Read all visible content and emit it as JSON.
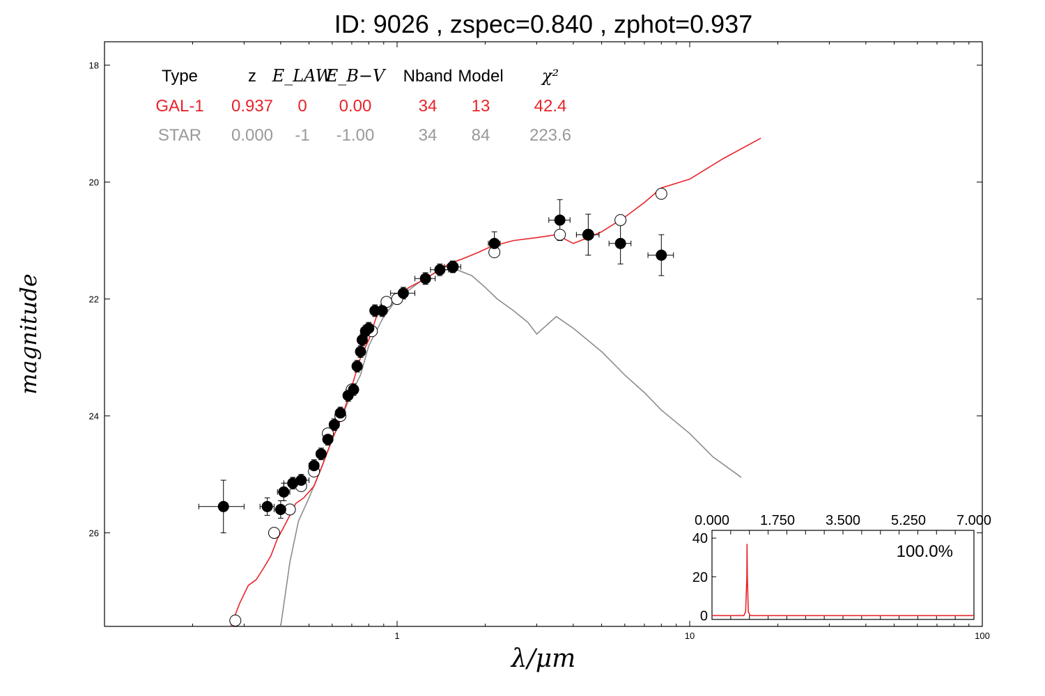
{
  "title": "ID:  9026  , zspec=0.840 , zphot=0.937",
  "colors": {
    "galaxy": "#e8232a",
    "star": "#8c8c8c",
    "points": "#000000",
    "open_points": "#ffffff"
  },
  "chart_data": [
    {
      "type": "scatter",
      "title": "ID:  9026  , zspec=0.840 , zphot=0.937",
      "xlabel": "λ/μm",
      "ylabel": "magnitude",
      "xscale": "log",
      "xlim": [
        0.1,
        100
      ],
      "ylim": [
        27.6,
        17.6
      ],
      "y_inverted": true,
      "x_ticks": [
        1,
        10,
        100
      ],
      "x_tick_labels": [
        "1",
        "10",
        "100"
      ],
      "y_ticks": [
        18,
        20,
        22,
        24,
        26
      ],
      "y_tick_labels": [
        "18",
        "20",
        "22",
        "24",
        "26"
      ],
      "grid": false,
      "fit_table": {
        "headers": [
          "Type",
          "z",
          "E_LAW",
          "E_B−V",
          "Nband",
          "Model",
          "χ²"
        ],
        "rows": [
          {
            "name": "GAL-1",
            "values": [
              "GAL-1",
              "0.937",
              "0",
              "0.00",
              "34",
              "13",
              "42.4"
            ],
            "color": "#e8232a"
          },
          {
            "name": "STAR",
            "values": [
              "STAR",
              "0.000",
              "-1",
              "-1.00",
              "34",
              "84",
              "223.6"
            ],
            "color": "#999999"
          }
        ]
      },
      "series": [
        {
          "name": "GAL-1",
          "kind": "line",
          "color": "#e8232a",
          "x": [
            0.27,
            0.29,
            0.31,
            0.33,
            0.35,
            0.37,
            0.39,
            0.41,
            0.43,
            0.45,
            0.48,
            0.52,
            0.56,
            0.6,
            0.65,
            0.7,
            0.75,
            0.8,
            0.85,
            0.9,
            1.0,
            1.1,
            1.2,
            1.3,
            1.4,
            1.5,
            1.7,
            1.9,
            2.1,
            2.5,
            3.0,
            3.5,
            4.0,
            4.5,
            5.0,
            6.0,
            7.0,
            8.0,
            10.0,
            13.0,
            17.5
          ],
          "y": [
            27.6,
            27.2,
            26.9,
            26.8,
            26.6,
            26.4,
            26.1,
            25.9,
            25.7,
            25.5,
            25.4,
            25.2,
            24.8,
            24.4,
            24.0,
            23.5,
            23.0,
            22.7,
            22.3,
            22.1,
            21.95,
            21.8,
            21.7,
            21.6,
            21.5,
            21.4,
            21.3,
            21.2,
            21.1,
            21.0,
            20.95,
            20.9,
            21.05,
            20.95,
            20.85,
            20.6,
            20.35,
            20.1,
            19.95,
            19.6,
            19.25
          ]
        },
        {
          "name": "STAR",
          "kind": "line",
          "color": "#8c8c8c",
          "x": [
            0.4,
            0.43,
            0.46,
            0.5,
            0.55,
            0.6,
            0.65,
            0.7,
            0.75,
            0.8,
            0.9,
            1.0,
            1.2,
            1.4,
            1.6,
            1.8,
            2.0,
            2.2,
            2.5,
            2.8,
            3.0,
            3.5,
            4.0,
            5.0,
            6.0,
            7.0,
            8.0,
            10.0,
            12.0,
            15.0
          ],
          "y": [
            27.6,
            26.5,
            25.8,
            25.4,
            24.9,
            24.4,
            24.0,
            23.6,
            23.3,
            22.8,
            22.3,
            22.0,
            21.7,
            21.5,
            21.5,
            21.6,
            21.8,
            22.0,
            22.2,
            22.4,
            22.6,
            22.3,
            22.5,
            22.9,
            23.3,
            23.6,
            23.9,
            24.3,
            24.7,
            25.05
          ]
        },
        {
          "name": "observed",
          "kind": "points",
          "color": "#000000",
          "points": [
            {
              "x": 0.255,
              "y": 25.55,
              "xerr": 0.045,
              "yerr": 0.45
            },
            {
              "x": 0.36,
              "y": 25.55,
              "xerr": 0.02,
              "yerr": 0.15
            },
            {
              "x": 0.4,
              "y": 25.6,
              "xerr": 0.02,
              "yerr": 0.15
            },
            {
              "x": 0.41,
              "y": 25.3,
              "xerr": 0.02,
              "yerr": 0.15
            },
            {
              "x": 0.44,
              "y": 25.15,
              "xerr": 0.03,
              "yerr": 0.1
            },
            {
              "x": 0.47,
              "y": 25.1,
              "xerr": 0.03,
              "yerr": 0.1
            },
            {
              "x": 0.52,
              "y": 24.85,
              "xerr": 0.02,
              "yerr": 0.1
            },
            {
              "x": 0.55,
              "y": 24.65,
              "xerr": 0.02,
              "yerr": 0.1
            },
            {
              "x": 0.58,
              "y": 24.4,
              "xerr": 0.02,
              "yerr": 0.1
            },
            {
              "x": 0.61,
              "y": 24.15,
              "xerr": 0.02,
              "yerr": 0.1
            },
            {
              "x": 0.64,
              "y": 23.95,
              "xerr": 0.02,
              "yerr": 0.1
            },
            {
              "x": 0.68,
              "y": 23.65,
              "xerr": 0.02,
              "yerr": 0.1
            },
            {
              "x": 0.71,
              "y": 23.55,
              "xerr": 0.02,
              "yerr": 0.1
            },
            {
              "x": 0.73,
              "y": 23.15,
              "xerr": 0.02,
              "yerr": 0.1
            },
            {
              "x": 0.75,
              "y": 22.9,
              "xerr": 0.02,
              "yerr": 0.1
            },
            {
              "x": 0.76,
              "y": 22.7,
              "xerr": 0.02,
              "yerr": 0.1
            },
            {
              "x": 0.78,
              "y": 22.55,
              "xerr": 0.02,
              "yerr": 0.1
            },
            {
              "x": 0.8,
              "y": 22.5,
              "xerr": 0.02,
              "yerr": 0.1
            },
            {
              "x": 0.84,
              "y": 22.2,
              "xerr": 0.03,
              "yerr": 0.1
            },
            {
              "x": 0.89,
              "y": 22.2,
              "xerr": 0.03,
              "yerr": 0.1
            },
            {
              "x": 1.05,
              "y": 21.9,
              "xerr": 0.1,
              "yerr": 0.1
            },
            {
              "x": 1.25,
              "y": 21.65,
              "xerr": 0.1,
              "yerr": 0.1
            },
            {
              "x": 1.4,
              "y": 21.5,
              "xerr": 0.1,
              "yerr": 0.1
            },
            {
              "x": 1.55,
              "y": 21.45,
              "xerr": 0.1,
              "yerr": 0.1
            },
            {
              "x": 2.15,
              "y": 21.05,
              "xerr": 0.1,
              "yerr": 0.2
            },
            {
              "x": 3.6,
              "y": 20.65,
              "xerr": 0.3,
              "yerr": 0.35
            },
            {
              "x": 4.5,
              "y": 20.9,
              "xerr": 0.4,
              "yerr": 0.35
            },
            {
              "x": 5.8,
              "y": 21.05,
              "xerr": 0.5,
              "yerr": 0.35
            },
            {
              "x": 8.0,
              "y": 21.25,
              "xerr": 0.8,
              "yerr": 0.35
            }
          ]
        },
        {
          "name": "model_magnitudes",
          "kind": "open_points",
          "color": "#000000",
          "points": [
            {
              "x": 0.28,
              "y": 27.5
            },
            {
              "x": 0.38,
              "y": 26.0
            },
            {
              "x": 0.43,
              "y": 25.6
            },
            {
              "x": 0.47,
              "y": 25.2
            },
            {
              "x": 0.52,
              "y": 24.95
            },
            {
              "x": 0.58,
              "y": 24.3
            },
            {
              "x": 0.64,
              "y": 24.0
            },
            {
              "x": 0.7,
              "y": 23.55
            },
            {
              "x": 0.82,
              "y": 22.55
            },
            {
              "x": 0.92,
              "y": 22.05
            },
            {
              "x": 1.0,
              "y": 22.0
            },
            {
              "x": 1.55,
              "y": 21.45
            },
            {
              "x": 2.15,
              "y": 21.2
            },
            {
              "x": 3.6,
              "y": 20.9
            },
            {
              "x": 4.5,
              "y": 20.9
            },
            {
              "x": 5.8,
              "y": 20.65
            },
            {
              "x": 8.0,
              "y": 20.2
            }
          ]
        }
      ]
    },
    {
      "type": "line",
      "title": "",
      "annotation": "100.0%",
      "xlim": [
        0.0,
        7.0
      ],
      "ylim": [
        -2,
        44
      ],
      "x_tick_labels": [
        "0.000",
        "1.750",
        "3.500",
        "5.250",
        "7.000"
      ],
      "y_tick_labels": [
        "0",
        "20",
        "40"
      ],
      "series": [
        {
          "name": "P(z)",
          "color": "#e8232a",
          "x": [
            0.0,
            0.85,
            0.9,
            0.93,
            0.937,
            0.945,
            0.97,
            1.02,
            7.0
          ],
          "y": [
            0,
            0,
            2,
            20,
            37,
            20,
            2,
            0,
            0
          ]
        }
      ]
    }
  ]
}
